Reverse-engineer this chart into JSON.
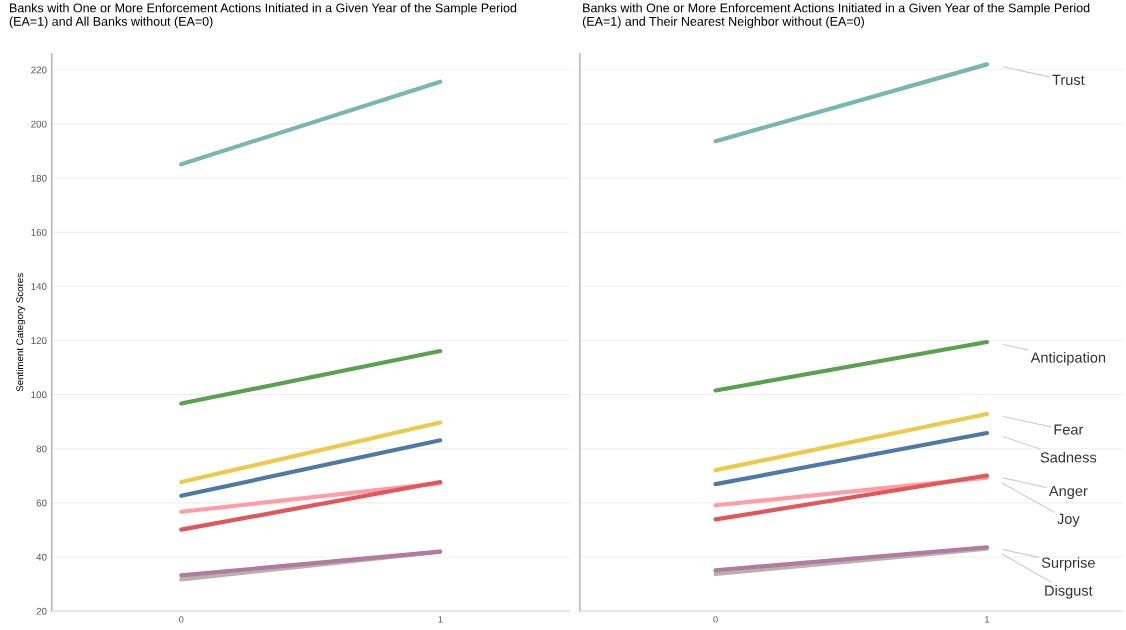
{
  "chart_data": [
    {
      "type": "line",
      "title": "Banks with One or More Enforcement Actions Initiated in a Given Year of the Sample Period (EA=1) and All Banks without (EA=0)",
      "ylabel": "Sentiment Category Scores",
      "categories": [
        "0",
        "1"
      ],
      "ylim": [
        20,
        226
      ],
      "yticks": [
        20,
        40,
        60,
        80,
        100,
        120,
        140,
        160,
        180,
        200,
        220
      ],
      "grid": "y",
      "marker": "none",
      "line_style": "solid",
      "series": [
        {
          "color": "#76b7b2",
          "values": [
            185.1,
            215.6
          ]
        },
        {
          "color": "#59a14f",
          "values": [
            96.7,
            116.1
          ]
        },
        {
          "color": "#edc948",
          "values": [
            67.7,
            89.7
          ]
        },
        {
          "color": "#4e79a7",
          "values": [
            62.6,
            83.1
          ]
        },
        {
          "color": "#ff9da7",
          "values": [
            56.7,
            67.3
          ]
        },
        {
          "color": "#e15759",
          "values": [
            50.1,
            67.7
          ]
        },
        {
          "color": "#bab0ac",
          "values": [
            31.7,
            42.0
          ]
        },
        {
          "color": "#b07aa1",
          "values": [
            33.2,
            42.0
          ]
        }
      ]
    },
    {
      "type": "line",
      "title": "Banks with One or More Enforcement Actions Initiated in a Given Year of the Sample Period (EA=1) and Their Nearest Neighbor without (EA=0)",
      "categories": [
        "0",
        "1"
      ],
      "ylim": [
        20,
        226
      ],
      "yticks": [
        20,
        40,
        60,
        80,
        100,
        120,
        140,
        160,
        180,
        200,
        220
      ],
      "tick_labels": "x",
      "grid": "y",
      "marker": "none",
      "line_style": "solid",
      "series": [
        {
          "name": "Trust",
          "color": "#76b7b2",
          "values": [
            193.6,
            222.0
          ]
        },
        {
          "name": "Anticipation",
          "color": "#59a14f",
          "values": [
            101.5,
            119.4
          ]
        },
        {
          "name": "Fear",
          "color": "#edc948",
          "values": [
            72.1,
            92.8
          ]
        },
        {
          "name": "Sadness",
          "color": "#4e79a7",
          "values": [
            66.9,
            85.8
          ]
        },
        {
          "name": "Joy",
          "color": "#ff9da7",
          "values": [
            59.1,
            69.3
          ]
        },
        {
          "name": "Anger",
          "color": "#e15759",
          "values": [
            53.9,
            70.1
          ]
        },
        {
          "name": "Disgust",
          "color": "#bab0ac",
          "values": [
            33.7,
            43.1
          ]
        },
        {
          "name": "Surprise",
          "color": "#b07aa1",
          "values": [
            35.1,
            43.6
          ]
        }
      ]
    }
  ]
}
